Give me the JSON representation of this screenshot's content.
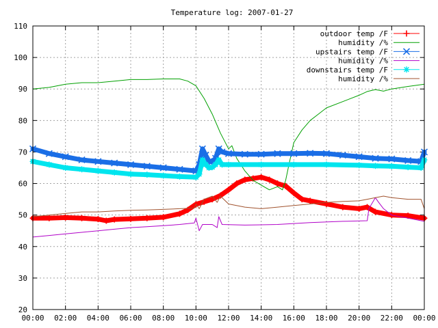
{
  "chart_data": {
    "type": "line",
    "title": "Temperature log: 2007-01-27",
    "xlabel": "",
    "ylabel": "",
    "x_range": [
      "00:00",
      "24:00"
    ],
    "ylim": [
      20,
      110
    ],
    "grid": true,
    "legend_position": "top-right",
    "x_ticks": [
      {
        "hour": 0,
        "label": "00:00"
      },
      {
        "hour": 2,
        "label": "02:00"
      },
      {
        "hour": 4,
        "label": "04:00"
      },
      {
        "hour": 6,
        "label": "06:00"
      },
      {
        "hour": 8,
        "label": "08:00"
      },
      {
        "hour": 10,
        "label": "10:00"
      },
      {
        "hour": 12,
        "label": "12:00"
      },
      {
        "hour": 14,
        "label": "14:00"
      },
      {
        "hour": 16,
        "label": "16:00"
      },
      {
        "hour": 18,
        "label": "18:00"
      },
      {
        "hour": 20,
        "label": "20:00"
      },
      {
        "hour": 22,
        "label": "22:00"
      },
      {
        "hour": 24,
        "label": "00:00"
      }
    ],
    "y_ticks": [
      {
        "value": 20,
        "label": "20"
      },
      {
        "value": 30,
        "label": "30"
      },
      {
        "value": 40,
        "label": "40"
      },
      {
        "value": 50,
        "label": "50"
      },
      {
        "value": 60,
        "label": "60"
      },
      {
        "value": 70,
        "label": "70"
      },
      {
        "value": 80,
        "label": "80"
      },
      {
        "value": 90,
        "label": "90"
      },
      {
        "value": 100,
        "label": "100"
      },
      {
        "value": 110,
        "label": "110"
      }
    ],
    "series": [
      {
        "name": "outdoor temp /F",
        "color": "#ff0000",
        "marker": "plus",
        "style": "thick",
        "points": [
          [
            0,
            49
          ],
          [
            1,
            49
          ],
          [
            2,
            49.2
          ],
          [
            3,
            49
          ],
          [
            4,
            48.7
          ],
          [
            4.5,
            48.2
          ],
          [
            5,
            48.6
          ],
          [
            6,
            48.8
          ],
          [
            7,
            49
          ],
          [
            8,
            49.3
          ],
          [
            9,
            50.4
          ],
          [
            9.5,
            51.6
          ],
          [
            10,
            53.4
          ],
          [
            10.5,
            54.2
          ],
          [
            11,
            55
          ],
          [
            11.5,
            56.2
          ],
          [
            12,
            58
          ],
          [
            12.5,
            60
          ],
          [
            13,
            61.2
          ],
          [
            13.5,
            61.6
          ],
          [
            14,
            62
          ],
          [
            14.5,
            61.2
          ],
          [
            15,
            60
          ],
          [
            15.5,
            59.2
          ],
          [
            16,
            57
          ],
          [
            16.5,
            55
          ],
          [
            17,
            54.5
          ],
          [
            18,
            53.5
          ],
          [
            19,
            52.5
          ],
          [
            20,
            52
          ],
          [
            20.5,
            52.5
          ],
          [
            21,
            51
          ],
          [
            22,
            50
          ],
          [
            23,
            49.8
          ],
          [
            24,
            49
          ]
        ]
      },
      {
        "name": "humidity /%",
        "color": "#00a000",
        "marker": "none",
        "style": "thin",
        "points": [
          [
            0,
            90
          ],
          [
            1,
            90.5
          ],
          [
            2,
            91.5
          ],
          [
            3,
            92
          ],
          [
            4,
            92
          ],
          [
            5,
            92.5
          ],
          [
            6,
            93
          ],
          [
            7,
            93
          ],
          [
            8,
            93.2
          ],
          [
            9,
            93.2
          ],
          [
            9.5,
            92.5
          ],
          [
            10,
            91
          ],
          [
            10.5,
            87
          ],
          [
            11,
            82
          ],
          [
            11.5,
            76
          ],
          [
            12,
            71
          ],
          [
            12.2,
            72
          ],
          [
            12.5,
            68
          ],
          [
            13,
            64
          ],
          [
            13.5,
            61
          ],
          [
            14,
            59.5
          ],
          [
            14.5,
            58
          ],
          [
            15,
            59
          ],
          [
            15.3,
            58
          ],
          [
            15.5,
            61
          ],
          [
            15.7,
            66
          ],
          [
            16,
            73
          ],
          [
            16.5,
            77
          ],
          [
            17,
            80
          ],
          [
            17.5,
            82
          ],
          [
            18,
            84
          ],
          [
            19,
            86
          ],
          [
            20,
            88
          ],
          [
            20.5,
            89.2
          ],
          [
            21,
            89.8
          ],
          [
            21.5,
            89.3
          ],
          [
            22,
            90
          ],
          [
            23,
            90.8
          ],
          [
            24,
            91.5
          ]
        ]
      },
      {
        "name": "upstairs temp /F",
        "color": "#1a6ee6",
        "marker": "x",
        "style": "thick",
        "points": [
          [
            0,
            71
          ],
          [
            1,
            69.5
          ],
          [
            2,
            68.5
          ],
          [
            3,
            67.5
          ],
          [
            4,
            67
          ],
          [
            5,
            66.5
          ],
          [
            6,
            66
          ],
          [
            7,
            65.5
          ],
          [
            8,
            65
          ],
          [
            9,
            64.5
          ],
          [
            10,
            64
          ],
          [
            10.2,
            66
          ],
          [
            10.4,
            71
          ],
          [
            10.6,
            69
          ],
          [
            10.8,
            67
          ],
          [
            11,
            67
          ],
          [
            11.2,
            68
          ],
          [
            11.4,
            71
          ],
          [
            11.6,
            70
          ],
          [
            12,
            69.5
          ],
          [
            13,
            69.3
          ],
          [
            14,
            69.3
          ],
          [
            15,
            69.5
          ],
          [
            16,
            69.5
          ],
          [
            17,
            69.6
          ],
          [
            18,
            69.5
          ],
          [
            19,
            69
          ],
          [
            20,
            68.5
          ],
          [
            21,
            68
          ],
          [
            22,
            67.8
          ],
          [
            23,
            67.3
          ],
          [
            23.8,
            67
          ],
          [
            24,
            70
          ]
        ]
      },
      {
        "name": "humidity /%",
        "color": "#b000c8",
        "marker": "none",
        "style": "thin",
        "points": [
          [
            0,
            43
          ],
          [
            1,
            43.5
          ],
          [
            2,
            44
          ],
          [
            3,
            44.5
          ],
          [
            4,
            45
          ],
          [
            5,
            45.5
          ],
          [
            6,
            46
          ],
          [
            7,
            46.3
          ],
          [
            8,
            46.6
          ],
          [
            9,
            47
          ],
          [
            9.9,
            47.5
          ],
          [
            10,
            49
          ],
          [
            10.2,
            45
          ],
          [
            10.4,
            47
          ],
          [
            11,
            47
          ],
          [
            11.3,
            46
          ],
          [
            11.4,
            49.5
          ],
          [
            11.6,
            47
          ],
          [
            13,
            46.8
          ],
          [
            15,
            47
          ],
          [
            17,
            47.6
          ],
          [
            19,
            48
          ],
          [
            20.5,
            48.2
          ],
          [
            20.6,
            52
          ],
          [
            21,
            55.5
          ],
          [
            21.2,
            54
          ],
          [
            21.5,
            52
          ],
          [
            22,
            50
          ],
          [
            23,
            49
          ],
          [
            24,
            48
          ]
        ]
      },
      {
        "name": "downstairs temp /F",
        "color": "#00e5ee",
        "marker": "star",
        "style": "thick",
        "points": [
          [
            0,
            67
          ],
          [
            1,
            66
          ],
          [
            2,
            65
          ],
          [
            3,
            64.5
          ],
          [
            4,
            64
          ],
          [
            5,
            63.5
          ],
          [
            6,
            63
          ],
          [
            7,
            62.8
          ],
          [
            8,
            62.5
          ],
          [
            9,
            62.2
          ],
          [
            10,
            62
          ],
          [
            10.2,
            63
          ],
          [
            10.4,
            67.5
          ],
          [
            10.6,
            66
          ],
          [
            10.8,
            65
          ],
          [
            11,
            65.2
          ],
          [
            11.2,
            66
          ],
          [
            11.4,
            67.5
          ],
          [
            11.6,
            66
          ],
          [
            12,
            66
          ],
          [
            14,
            66
          ],
          [
            16,
            66
          ],
          [
            18,
            66
          ],
          [
            20,
            65.8
          ],
          [
            21,
            65.6
          ],
          [
            22,
            65.5
          ],
          [
            23,
            65.2
          ],
          [
            23.8,
            65
          ],
          [
            24,
            67.5
          ]
        ]
      },
      {
        "name": "humidity /%",
        "color": "#a0522d",
        "marker": "none",
        "style": "thin",
        "points": [
          [
            0,
            49.5
          ],
          [
            1,
            50
          ],
          [
            2,
            50.5
          ],
          [
            3,
            51
          ],
          [
            4,
            51
          ],
          [
            5,
            51.3
          ],
          [
            6,
            51.5
          ],
          [
            7,
            51.6
          ],
          [
            8,
            51.8
          ],
          [
            9,
            52
          ],
          [
            9.9,
            52.2
          ],
          [
            10,
            53.5
          ],
          [
            10.2,
            52
          ],
          [
            10.5,
            55
          ],
          [
            11,
            56
          ],
          [
            11.3,
            54
          ],
          [
            11.5,
            56
          ],
          [
            12,
            53.5
          ],
          [
            13,
            52.5
          ],
          [
            14,
            52
          ],
          [
            15,
            52.5
          ],
          [
            16,
            53
          ],
          [
            17,
            53.5
          ],
          [
            18,
            54
          ],
          [
            19,
            54.3
          ],
          [
            20,
            54.5
          ],
          [
            20.5,
            55
          ],
          [
            21,
            55.5
          ],
          [
            21.5,
            56
          ],
          [
            22,
            55.5
          ],
          [
            23,
            55
          ],
          [
            23.8,
            55
          ],
          [
            24,
            52
          ]
        ]
      }
    ]
  }
}
